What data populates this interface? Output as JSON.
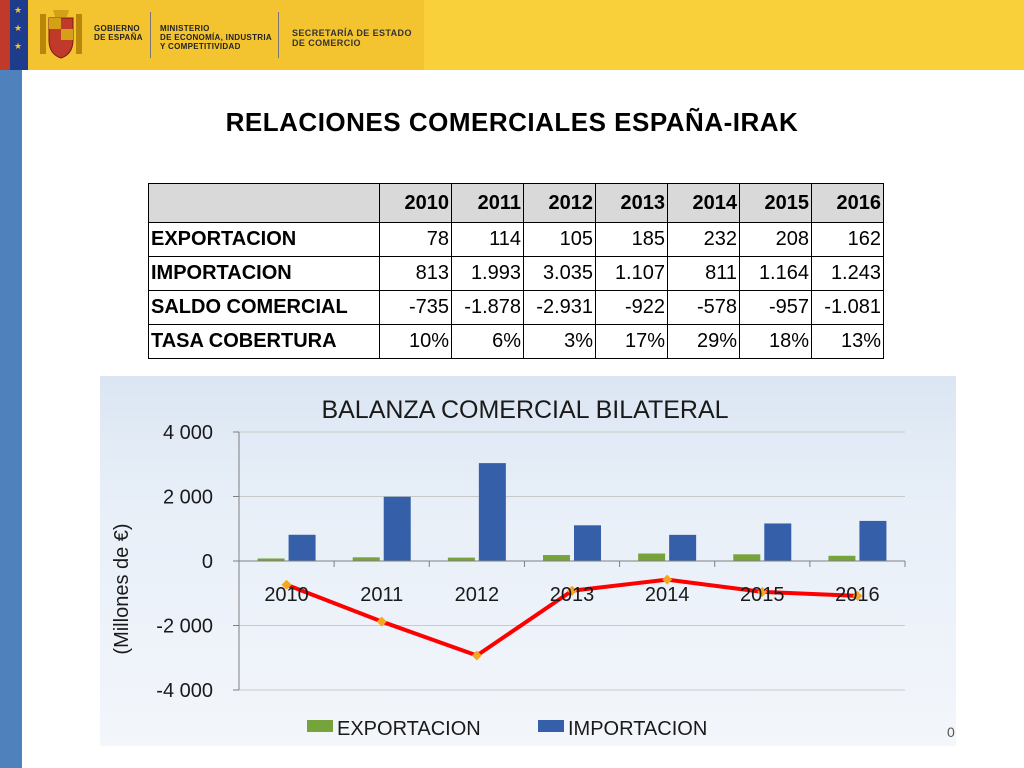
{
  "header": {
    "gov_line1": "GOBIERNO",
    "gov_line2": "DE ESPAÑA",
    "ministry_line1": "MINISTERIO",
    "ministry_line2": "DE ECONOMÍA, INDUSTRIA",
    "ministry_line3": "Y COMPETITIVIDAD",
    "secretaria_line1": "SECRETARÍA DE ESTADO",
    "secretaria_line2": "DE COMERCIO"
  },
  "title": "RELACIONES COMERCIALES ESPAÑA-IRAK",
  "table": {
    "years": [
      "2010",
      "2011",
      "2012",
      "2013",
      "2014",
      "2015",
      "2016"
    ],
    "rows": [
      {
        "label": "EXPORTACION",
        "values": [
          "78",
          "114",
          "105",
          "185",
          "232",
          "208",
          "162"
        ]
      },
      {
        "label": "IMPORTACION",
        "values": [
          "813",
          "1.993",
          "3.035",
          "1.107",
          "811",
          "1.164",
          "1.243"
        ]
      },
      {
        "label": "SALDO COMERCIAL",
        "values": [
          "-735",
          "-1.878",
          "-2.931",
          "-922",
          "-578",
          "-957",
          "-1.081"
        ]
      },
      {
        "label": "TASA COBERTURA",
        "values": [
          "10%",
          "6%",
          "3%",
          "17%",
          "29%",
          "18%",
          "13%"
        ]
      }
    ]
  },
  "chart_data": {
    "type": "bar",
    "title": "BALANZA COMERCIAL BILATERAL",
    "ylabel": "(Millones de €)",
    "categories": [
      "2010",
      "2011",
      "2012",
      "2013",
      "2014",
      "2015",
      "2016"
    ],
    "ylim": [
      -4000,
      4000
    ],
    "yticks": [
      4000,
      2000,
      0,
      -2000,
      -4000
    ],
    "ytick_labels": [
      "4 000",
      "2 000",
      "0",
      "-2 000",
      "-4 000"
    ],
    "series": [
      {
        "name": "EXPORTACION",
        "type": "bar",
        "color": "#77a33b",
        "values": [
          78,
          114,
          105,
          185,
          232,
          208,
          162
        ]
      },
      {
        "name": "IMPORTACION",
        "type": "bar",
        "color": "#3560a9",
        "values": [
          813,
          1993,
          3035,
          1107,
          811,
          1164,
          1243
        ]
      },
      {
        "type": "line",
        "color": "#ff0000",
        "marker_color": "#f5a623",
        "values": [
          -735,
          -1878,
          -2931,
          -922,
          -578,
          -957,
          -1081
        ]
      }
    ],
    "grid": true,
    "legend": "bottom"
  },
  "page_number": "0"
}
